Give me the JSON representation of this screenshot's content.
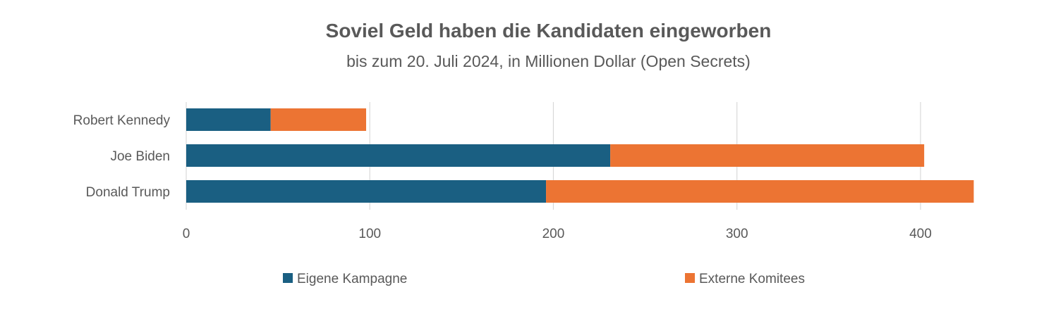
{
  "chart_data": {
    "type": "bar",
    "orientation": "horizontal",
    "stacked": true,
    "title": "Soviel Geld haben die Kandidaten eingeworben",
    "subtitle": "bis zum 20. Juli 2024, in Millionen Dollar (Open Secrets)",
    "categories": [
      "Robert Kennedy",
      "Joe Biden",
      "Donald Trump"
    ],
    "series": [
      {
        "name": "Eigene Kampagne",
        "color": "#1a5f82",
        "values": [
          46,
          231,
          196
        ]
      },
      {
        "name": "Externe Komitees",
        "color": "#ec7433",
        "values": [
          52,
          171,
          233
        ]
      }
    ],
    "xlim": [
      0,
      430
    ],
    "xticks": [
      0,
      100,
      200,
      300,
      400
    ],
    "grid": true,
    "legend": "bottom"
  }
}
